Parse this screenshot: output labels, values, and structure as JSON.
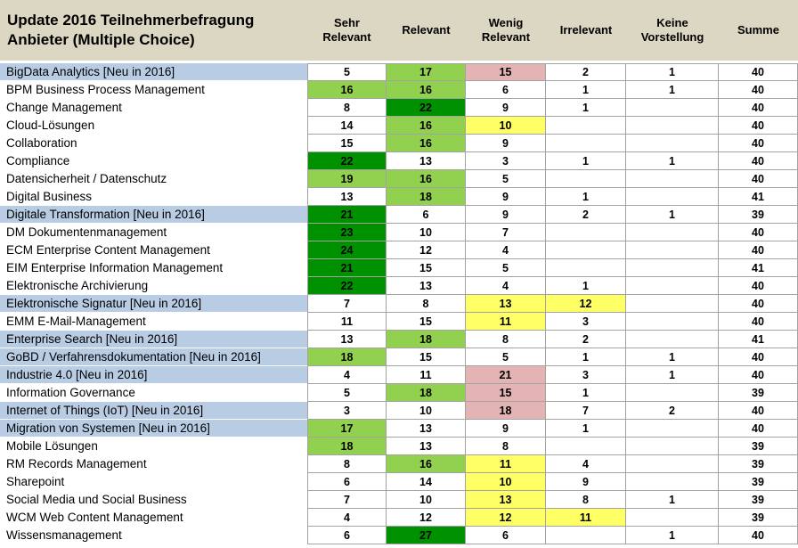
{
  "header": {
    "title": "Update 2016 Teilnehmerbefragung Anbieter (Multiple Choice)"
  },
  "columns": [
    {
      "key": "sehr_relevant",
      "label": "Sehr Relevant"
    },
    {
      "key": "relevant",
      "label": "Relevant"
    },
    {
      "key": "wenig_relevant",
      "label": "Wenig Relevant"
    },
    {
      "key": "irrelevant",
      "label": "Irrelevant"
    },
    {
      "key": "keine_vorstellung",
      "label": "Keine Vorstellung"
    },
    {
      "key": "summe",
      "label": "Summe"
    }
  ],
  "colors": {
    "header_bg": "#DBD7C3",
    "new_row_bg": "#B8CCE4",
    "light_green": "#92D050",
    "dark_green": "#009100",
    "yellow": "#FFFF66",
    "pink": "#E4B3B3",
    "grid": "#A3A3A3"
  },
  "chart_data": {
    "type": "table",
    "title": "Update 2016 Teilnehmerbefragung Anbieter (Multiple Choice)",
    "columns": [
      "Sehr Relevant",
      "Relevant",
      "Wenig Relevant",
      "Irrelevant",
      "Keine Vorstellung",
      "Summe"
    ],
    "highlight_legend": {
      "lg": "light-green",
      "dg": "dark-green",
      "y": "yellow",
      "p": "pink",
      "": "none"
    },
    "rows": [
      {
        "label": "BigData Analytics [Neu in 2016]",
        "new_2016": true,
        "values": [
          "5",
          "17",
          "15",
          "2",
          "1",
          "40"
        ],
        "highlights": [
          "",
          "lg",
          "p",
          "",
          "",
          ""
        ]
      },
      {
        "label": "BPM Business Process Management",
        "new_2016": false,
        "values": [
          "16",
          "16",
          "6",
          "1",
          "1",
          "40"
        ],
        "highlights": [
          "lg",
          "lg",
          "",
          "",
          "",
          ""
        ]
      },
      {
        "label": "Change Management",
        "new_2016": false,
        "values": [
          "8",
          "22",
          "9",
          "1",
          "",
          "40"
        ],
        "highlights": [
          "",
          "dg",
          "",
          "",
          "",
          ""
        ]
      },
      {
        "label": "Cloud-Lösungen",
        "new_2016": false,
        "values": [
          "14",
          "16",
          "10",
          "",
          "",
          "40"
        ],
        "highlights": [
          "",
          "lg",
          "y",
          "",
          "",
          ""
        ]
      },
      {
        "label": "Collaboration",
        "new_2016": false,
        "values": [
          "15",
          "16",
          "9",
          "",
          "",
          "40"
        ],
        "highlights": [
          "",
          "lg",
          "",
          "",
          "",
          ""
        ]
      },
      {
        "label": "Compliance",
        "new_2016": false,
        "values": [
          "22",
          "13",
          "3",
          "1",
          "1",
          "40"
        ],
        "highlights": [
          "dg",
          "",
          "",
          "",
          "",
          ""
        ]
      },
      {
        "label": "Datensicherheit / Datenschutz",
        "new_2016": false,
        "values": [
          "19",
          "16",
          "5",
          "",
          "",
          "40"
        ],
        "highlights": [
          "lg",
          "lg",
          "",
          "",
          "",
          ""
        ]
      },
      {
        "label": "Digital Business",
        "new_2016": false,
        "values": [
          "13",
          "18",
          "9",
          "1",
          "",
          "41"
        ],
        "highlights": [
          "",
          "lg",
          "",
          "",
          "",
          ""
        ]
      },
      {
        "label": "Digitale Transformation [Neu in 2016]",
        "new_2016": true,
        "values": [
          "21",
          "6",
          "9",
          "2",
          "1",
          "39"
        ],
        "highlights": [
          "dg",
          "",
          "",
          "",
          "",
          ""
        ]
      },
      {
        "label": "DM Dokumentenmanagement",
        "new_2016": false,
        "values": [
          "23",
          "10",
          "7",
          "",
          "",
          "40"
        ],
        "highlights": [
          "dg",
          "",
          "",
          "",
          "",
          ""
        ]
      },
      {
        "label": "ECM Enterprise Content Management",
        "new_2016": false,
        "values": [
          "24",
          "12",
          "4",
          "",
          "",
          "40"
        ],
        "highlights": [
          "dg",
          "",
          "",
          "",
          "",
          ""
        ]
      },
      {
        "label": "EIM Enterprise Information Management",
        "new_2016": false,
        "values": [
          "21",
          "15",
          "5",
          "",
          "",
          "41"
        ],
        "highlights": [
          "dg",
          "",
          "",
          "",
          "",
          ""
        ]
      },
      {
        "label": "Elektronische Archivierung",
        "new_2016": false,
        "values": [
          "22",
          "13",
          "4",
          "1",
          "",
          "40"
        ],
        "highlights": [
          "dg",
          "",
          "",
          "",
          "",
          ""
        ]
      },
      {
        "label": "Elektronische Signatur [Neu in 2016]",
        "new_2016": true,
        "values": [
          "7",
          "8",
          "13",
          "12",
          "",
          "40"
        ],
        "highlights": [
          "",
          "",
          "y",
          "y",
          "",
          ""
        ]
      },
      {
        "label": "EMM E-Mail-Management",
        "new_2016": false,
        "values": [
          "11",
          "15",
          "11",
          "3",
          "",
          "40"
        ],
        "highlights": [
          "",
          "",
          "y",
          "",
          "",
          ""
        ]
      },
      {
        "label": "Enterprise Search [Neu in 2016]",
        "new_2016": true,
        "values": [
          "13",
          "18",
          "8",
          "2",
          "",
          "41"
        ],
        "highlights": [
          "",
          "lg",
          "",
          "",
          "",
          ""
        ]
      },
      {
        "label": "GoBD / Verfahrensdokumentation [Neu in 2016]",
        "new_2016": true,
        "values": [
          "18",
          "15",
          "5",
          "1",
          "1",
          "40"
        ],
        "highlights": [
          "lg",
          "",
          "",
          "",
          "",
          ""
        ]
      },
      {
        "label": "Industrie 4.0 [Neu in 2016]",
        "new_2016": true,
        "values": [
          "4",
          "11",
          "21",
          "3",
          "1",
          "40"
        ],
        "highlights": [
          "",
          "",
          "p",
          "",
          "",
          ""
        ]
      },
      {
        "label": "Information Governance",
        "new_2016": false,
        "values": [
          "5",
          "18",
          "15",
          "1",
          "",
          "39"
        ],
        "highlights": [
          "",
          "lg",
          "p",
          "",
          "",
          ""
        ]
      },
      {
        "label": "Internet of Things (IoT) [Neu in 2016]",
        "new_2016": true,
        "values": [
          "3",
          "10",
          "18",
          "7",
          "2",
          "40"
        ],
        "highlights": [
          "",
          "",
          "p",
          "",
          "",
          ""
        ]
      },
      {
        "label": "Migration von Systemen [Neu in 2016]",
        "new_2016": true,
        "values": [
          "17",
          "13",
          "9",
          "1",
          "",
          "40"
        ],
        "highlights": [
          "lg",
          "",
          "",
          "",
          "",
          ""
        ]
      },
      {
        "label": "Mobile Lösungen",
        "new_2016": false,
        "values": [
          "18",
          "13",
          "8",
          "",
          "",
          "39"
        ],
        "highlights": [
          "lg",
          "",
          "",
          "",
          "",
          ""
        ]
      },
      {
        "label": "RM Records Management",
        "new_2016": false,
        "values": [
          "8",
          "16",
          "11",
          "4",
          "",
          "39"
        ],
        "highlights": [
          "",
          "lg",
          "y",
          "",
          "",
          ""
        ]
      },
      {
        "label": "Sharepoint",
        "new_2016": false,
        "values": [
          "6",
          "14",
          "10",
          "9",
          "",
          "39"
        ],
        "highlights": [
          "",
          "",
          "y",
          "",
          "",
          ""
        ]
      },
      {
        "label": "Social Media und Social Business",
        "new_2016": false,
        "values": [
          "7",
          "10",
          "13",
          "8",
          "1",
          "39"
        ],
        "highlights": [
          "",
          "",
          "y",
          "",
          "",
          ""
        ]
      },
      {
        "label": "WCM Web Content Management",
        "new_2016": false,
        "values": [
          "4",
          "12",
          "12",
          "11",
          "",
          "39"
        ],
        "highlights": [
          "",
          "",
          "y",
          "y",
          "",
          ""
        ]
      },
      {
        "label": "Wissensmanagement",
        "new_2016": false,
        "values": [
          "6",
          "27",
          "6",
          "",
          "1",
          "40"
        ],
        "highlights": [
          "",
          "dg",
          "",
          "",
          "",
          ""
        ]
      }
    ]
  }
}
